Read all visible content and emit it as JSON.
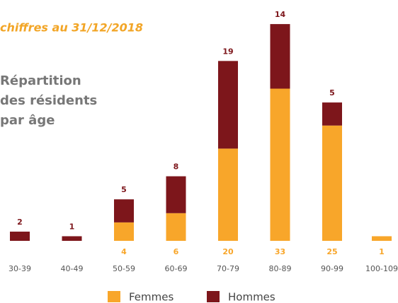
{
  "chart_data": {
    "type": "stacked_bar",
    "annotation": "chiffres au 31/12/2018",
    "title": [
      "Répartition",
      "des résidents",
      "par âge"
    ],
    "categories": [
      "30-39",
      "40-49",
      "50-59",
      "60-69",
      "70-79",
      "80-89",
      "90-99",
      "100-109"
    ],
    "series": [
      {
        "name": "Femmes",
        "color": "#f8a62a",
        "values": [
          null,
          null,
          4,
          6,
          20,
          33,
          25,
          1
        ]
      },
      {
        "name": "Hommes",
        "color": "#7d161b",
        "values": [
          2,
          1,
          5,
          8,
          19,
          14,
          5,
          null
        ]
      }
    ]
  }
}
